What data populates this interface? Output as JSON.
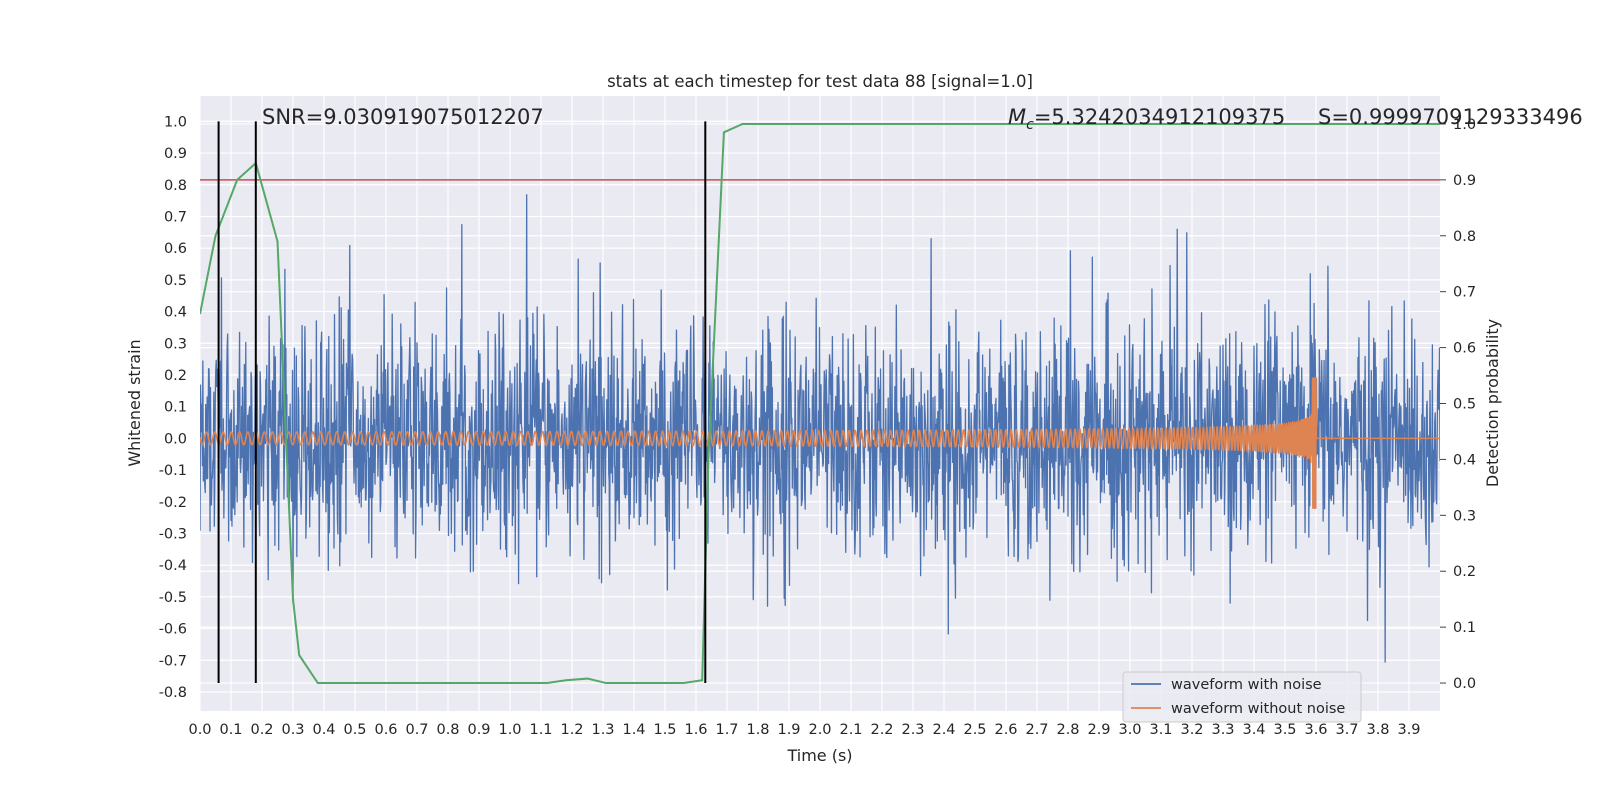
{
  "chart_data": {
    "type": "line",
    "title": "stats at each timestep for test data 88 [signal=1.0]",
    "xlabel": "Time (s)",
    "ylabel": "Whitened strain",
    "y2label": "Detection probability",
    "xlim": [
      0.0,
      4.0
    ],
    "ylim": [
      -0.86,
      1.08
    ],
    "y2lim": [
      -0.05,
      1.05
    ],
    "x_ticks": [
      "0.0",
      "0.1",
      "0.2",
      "0.3",
      "0.4",
      "0.5",
      "0.6",
      "0.7",
      "0.8",
      "0.9",
      "1.0",
      "1.1",
      "1.2",
      "1.3",
      "1.4",
      "1.5",
      "1.6",
      "1.7",
      "1.8",
      "1.9",
      "2.0",
      "2.1",
      "2.2",
      "2.3",
      "2.4",
      "2.5",
      "2.6",
      "2.7",
      "2.8",
      "2.9",
      "3.0",
      "3.1",
      "3.2",
      "3.3",
      "3.4",
      "3.5",
      "3.6",
      "3.7",
      "3.8",
      "3.9"
    ],
    "y_ticks": [
      "1.0",
      "0.9",
      "0.8",
      "0.7",
      "0.6",
      "0.5",
      "0.4",
      "0.3",
      "0.2",
      "0.1",
      "0.0",
      "-0.1",
      "-0.2",
      "-0.3",
      "-0.4",
      "-0.5",
      "-0.6",
      "-0.7",
      "-0.8"
    ],
    "y2_ticks": [
      "1.0",
      "0.9",
      "0.8",
      "0.7",
      "0.6",
      "0.5",
      "0.4",
      "0.3",
      "0.2",
      "0.1",
      "0.0"
    ],
    "grid": true,
    "legend_position": "lower-right",
    "series": [
      {
        "name": "waveform with noise",
        "color": "#4c72b0",
        "axis": "left",
        "description_hidden": true
      },
      {
        "name": "waveform without noise",
        "color": "#dd8452",
        "axis": "left"
      }
    ],
    "noise_amplitude_envelope": {
      "typical_peak": 0.45,
      "max": 1.0,
      "min": -0.77
    },
    "chirp": {
      "start_time": 0.0,
      "merger_time": 3.6,
      "initial_amplitude": 0.02,
      "merger_peak": 0.19,
      "merger_trough": -0.22
    },
    "detection_probability": {
      "color": "#55a868",
      "x": [
        0.0,
        0.05,
        0.12,
        0.18,
        0.25,
        0.3,
        0.32,
        0.38,
        0.5,
        0.7,
        0.9,
        1.1,
        1.12,
        1.18,
        1.25,
        1.31,
        1.45,
        1.56,
        1.62,
        1.64,
        1.69,
        1.75,
        2.0,
        2.5,
        3.0,
        3.5,
        4.0
      ],
      "y": [
        0.66,
        0.8,
        0.9,
        0.93,
        0.79,
        0.15,
        0.05,
        0.0,
        0.0,
        0.0,
        0.0,
        0.0,
        0.0,
        0.005,
        0.008,
        0.0,
        0.0,
        0.0,
        0.005,
        0.4,
        0.985,
        1.0,
        1.0,
        1.0,
        1.0,
        1.0,
        1.0
      ]
    },
    "threshold": {
      "value": 0.9,
      "axis": "right",
      "color": "#c44e52"
    },
    "vertical_markers": {
      "x": [
        0.06,
        0.18,
        1.63
      ],
      "color": "#000000"
    },
    "annotations": {
      "snr": "SNR=9.030919075012207",
      "mc_symbol": "M",
      "mc_subscript": "c",
      "mc_value": "=5.3242034912109375",
      "s": "S=0.9999709129333496"
    }
  }
}
